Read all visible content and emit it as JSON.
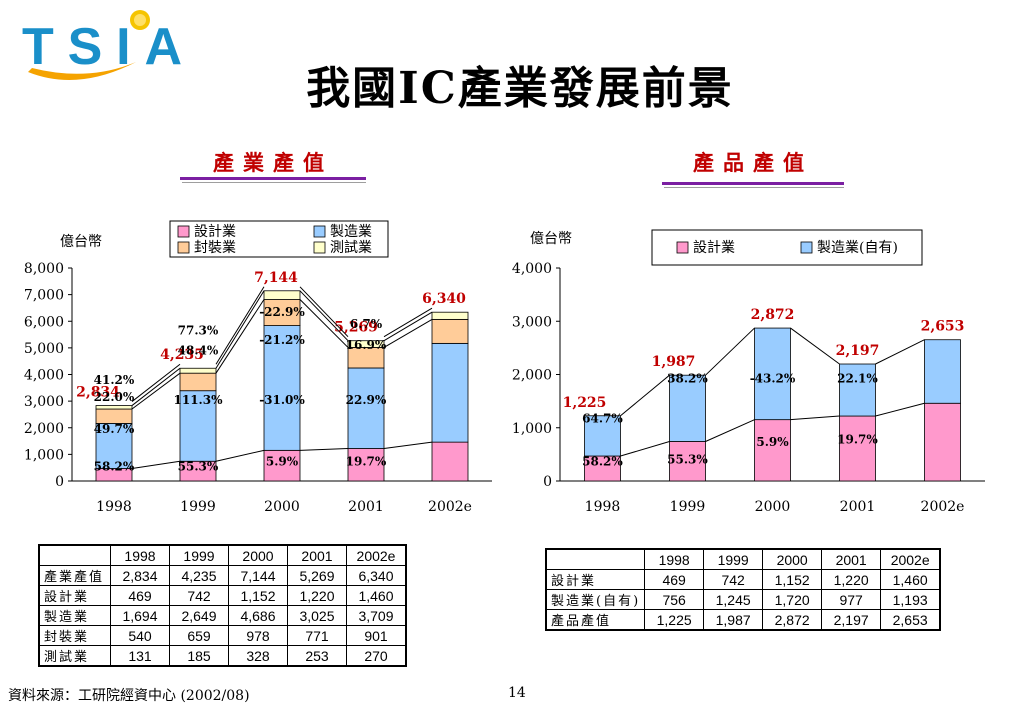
{
  "logo": {
    "text": "TSIA"
  },
  "header": {
    "title": "我國IC產業發展前景"
  },
  "left": {
    "subtitle": "產業產值",
    "unit_label": "億台幣"
  },
  "right": {
    "subtitle": "產品產值",
    "unit_label": "億台幣"
  },
  "colors": {
    "design": "#ff99cc",
    "manufacturing": "#99ccff",
    "packaging": "#ffcc99",
    "testing": "#ffffcc",
    "total_label": "#c00000",
    "accent": "#7b1fa2"
  },
  "chart_data": [
    {
      "type": "bar",
      "stacked": true,
      "categories": [
        "1998",
        "1999",
        "2000",
        "2001",
        "2002e"
      ],
      "ylim": [
        0,
        8000
      ],
      "yticks": [
        "0",
        "1,000",
        "2,000",
        "3,000",
        "4,000",
        "5,000",
        "6,000",
        "7,000",
        "8,000"
      ],
      "ylabel": "億台幣",
      "legend": [
        "設計業",
        "製造業",
        "封裝業",
        "測試業"
      ],
      "legend_position": "top",
      "series": [
        {
          "name": "設計業",
          "values": [
            469,
            742,
            1152,
            1220,
            1460
          ]
        },
        {
          "name": "製造業",
          "values": [
            1694,
            2649,
            4686,
            3025,
            3709
          ]
        },
        {
          "name": "封裝業",
          "values": [
            540,
            659,
            978,
            771,
            901
          ]
        },
        {
          "name": "測試業",
          "values": [
            131,
            185,
            328,
            253,
            270
          ]
        }
      ],
      "totals": [
        "2,834",
        "4,235",
        "7,144",
        "5,269",
        "6,340"
      ],
      "annotations": [
        {
          "text": "58.2%",
          "x": "1998",
          "y": 400
        },
        {
          "text": "55.3%",
          "x": "1999",
          "y": 400
        },
        {
          "text": "5.9%",
          "x": "2000",
          "y": 580
        },
        {
          "text": "19.7%",
          "x": "2001",
          "y": 580
        },
        {
          "text": "49.7%",
          "x": "1998",
          "y": 1800
        },
        {
          "text": "22.0%",
          "x": "1998",
          "y": 3000
        },
        {
          "text": "41.2%",
          "x": "1998",
          "y": 3650
        },
        {
          "text": "111.3%",
          "x": "1999",
          "y": 2900
        },
        {
          "text": "48.4%",
          "x": "1999",
          "y": 4750
        },
        {
          "text": "77.3%",
          "x": "1999",
          "y": 5500
        },
        {
          "text": "-31.0%",
          "x": "2000",
          "y": 2900
        },
        {
          "text": "-21.2%",
          "x": "2000",
          "y": 5150
        },
        {
          "text": "-22.9%",
          "x": "2000",
          "y": 6200
        },
        {
          "text": "22.9%",
          "x": "2001",
          "y": 2900
        },
        {
          "text": "16.9%",
          "x": "2001",
          "y": 4950
        },
        {
          "text": "6.7%",
          "x": "2001",
          "y": 5750
        }
      ]
    },
    {
      "type": "bar",
      "stacked": true,
      "categories": [
        "1998",
        "1999",
        "2000",
        "2001",
        "2002e"
      ],
      "ylim": [
        0,
        4000
      ],
      "yticks": [
        "0",
        "1,000",
        "2,000",
        "3,000",
        "4,000"
      ],
      "ylabel": "億台幣",
      "legend": [
        "設計業",
        "製造業(自有)"
      ],
      "legend_position": "top",
      "series": [
        {
          "name": "設計業",
          "values": [
            469,
            742,
            1152,
            1220,
            1460
          ]
        },
        {
          "name": "製造業(自有)",
          "values": [
            756,
            1245,
            1720,
            977,
            1193
          ]
        }
      ],
      "totals": [
        "1,225",
        "1,987",
        "2,872",
        "2,197",
        "2,653"
      ],
      "annotations": [
        {
          "text": "58.2%",
          "x": "1998",
          "y": 290
        },
        {
          "text": "64.7%",
          "x": "1998",
          "y": 1100
        },
        {
          "text": "55.3%",
          "x": "1999",
          "y": 330
        },
        {
          "text": "38.2%",
          "x": "1999",
          "y": 1850
        },
        {
          "text": "5.9%",
          "x": "2000",
          "y": 660
        },
        {
          "text": "-43.2%",
          "x": "2000",
          "y": 1850
        },
        {
          "text": "19.7%",
          "x": "2001",
          "y": 700
        },
        {
          "text": "22.1%",
          "x": "2001",
          "y": 1850
        }
      ]
    }
  ],
  "table1": {
    "headers": [
      "",
      "1998",
      "1999",
      "2000",
      "2001",
      "2002e"
    ],
    "rows": [
      [
        "產業產值",
        "2,834",
        "4,235",
        "7,144",
        "5,269",
        "6,340"
      ],
      [
        "設計業",
        "469",
        "742",
        "1,152",
        "1,220",
        "1,460"
      ],
      [
        "製造業",
        "1,694",
        "2,649",
        "4,686",
        "3,025",
        "3,709"
      ],
      [
        "封裝業",
        "540",
        "659",
        "978",
        "771",
        "901"
      ],
      [
        "測試業",
        "131",
        "185",
        "328",
        "253",
        "270"
      ]
    ]
  },
  "table2": {
    "headers": [
      "",
      "1998",
      "1999",
      "2000",
      "2001",
      "2002e"
    ],
    "rows": [
      [
        "設計業",
        "469",
        "742",
        "1,152",
        "1,220",
        "1,460"
      ],
      [
        "製造業(自有)",
        "756",
        "1,245",
        "1,720",
        "977",
        "1,193"
      ],
      [
        "產品產值",
        "1,225",
        "1,987",
        "2,872",
        "2,197",
        "2,653"
      ]
    ]
  },
  "footer": {
    "source": "資料來源：工研院經資中心 (2002/08)",
    "page": "14"
  }
}
